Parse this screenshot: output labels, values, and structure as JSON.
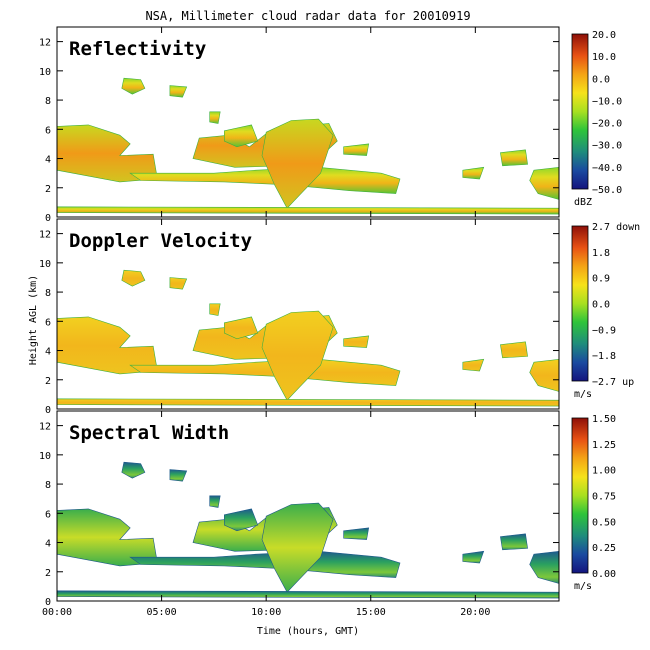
{
  "figure": {
    "title": "NSA, Millimeter cloud radar data for 20010919",
    "ylabel": "Height AGL (km)",
    "xlabel": "Time (hours, GMT)"
  },
  "chart_data": [
    {
      "type": "heatmap",
      "title": "Reflectivity",
      "xlabel": "Time (hours, GMT)",
      "ylabel": "Height AGL (km)",
      "x_ticks": [
        "00:00",
        "05:00",
        "10:00",
        "15:00",
        "20:00"
      ],
      "y_ticks": [
        "0",
        "2",
        "4",
        "6",
        "8",
        "10",
        "12"
      ],
      "xlim": [
        0,
        24
      ],
      "ylim": [
        0,
        13
      ],
      "colorbar": {
        "unit": "dBZ",
        "ticks": [
          "20.0",
          "10.0",
          "0.0",
          "−10.0",
          "−20.0",
          "−30.0",
          "−40.0",
          "−50.0"
        ],
        "range": [
          -50,
          20
        ]
      }
    },
    {
      "type": "heatmap",
      "title": "Doppler Velocity",
      "xlabel": "Time (hours, GMT)",
      "ylabel": "Height AGL (km)",
      "x_ticks": [
        "00:00",
        "05:00",
        "10:00",
        "15:00",
        "20:00"
      ],
      "y_ticks": [
        "0",
        "2",
        "4",
        "6",
        "8",
        "10",
        "12"
      ],
      "xlim": [
        0,
        24
      ],
      "ylim": [
        0,
        13
      ],
      "colorbar": {
        "unit": "m/s",
        "ticks": [
          "2.7 down",
          "1.8",
          "0.9",
          "0.0",
          "−0.9",
          "−1.8",
          "−2.7 up"
        ],
        "range": [
          -2.7,
          2.7
        ]
      }
    },
    {
      "type": "heatmap",
      "title": "Spectral Width",
      "xlabel": "Time (hours, GMT)",
      "ylabel": "Height AGL (km)",
      "x_ticks": [
        "00:00",
        "05:00",
        "10:00",
        "15:00",
        "20:00"
      ],
      "y_ticks": [
        "0",
        "2",
        "4",
        "6",
        "8",
        "10",
        "12"
      ],
      "xlim": [
        0,
        24
      ],
      "ylim": [
        0,
        13
      ],
      "colorbar": {
        "unit": "m/s",
        "ticks": [
          "1.50",
          "1.25",
          "1.00",
          "0.75",
          "0.50",
          "0.25",
          "0.00"
        ],
        "range": [
          0,
          1.5
        ]
      }
    }
  ]
}
